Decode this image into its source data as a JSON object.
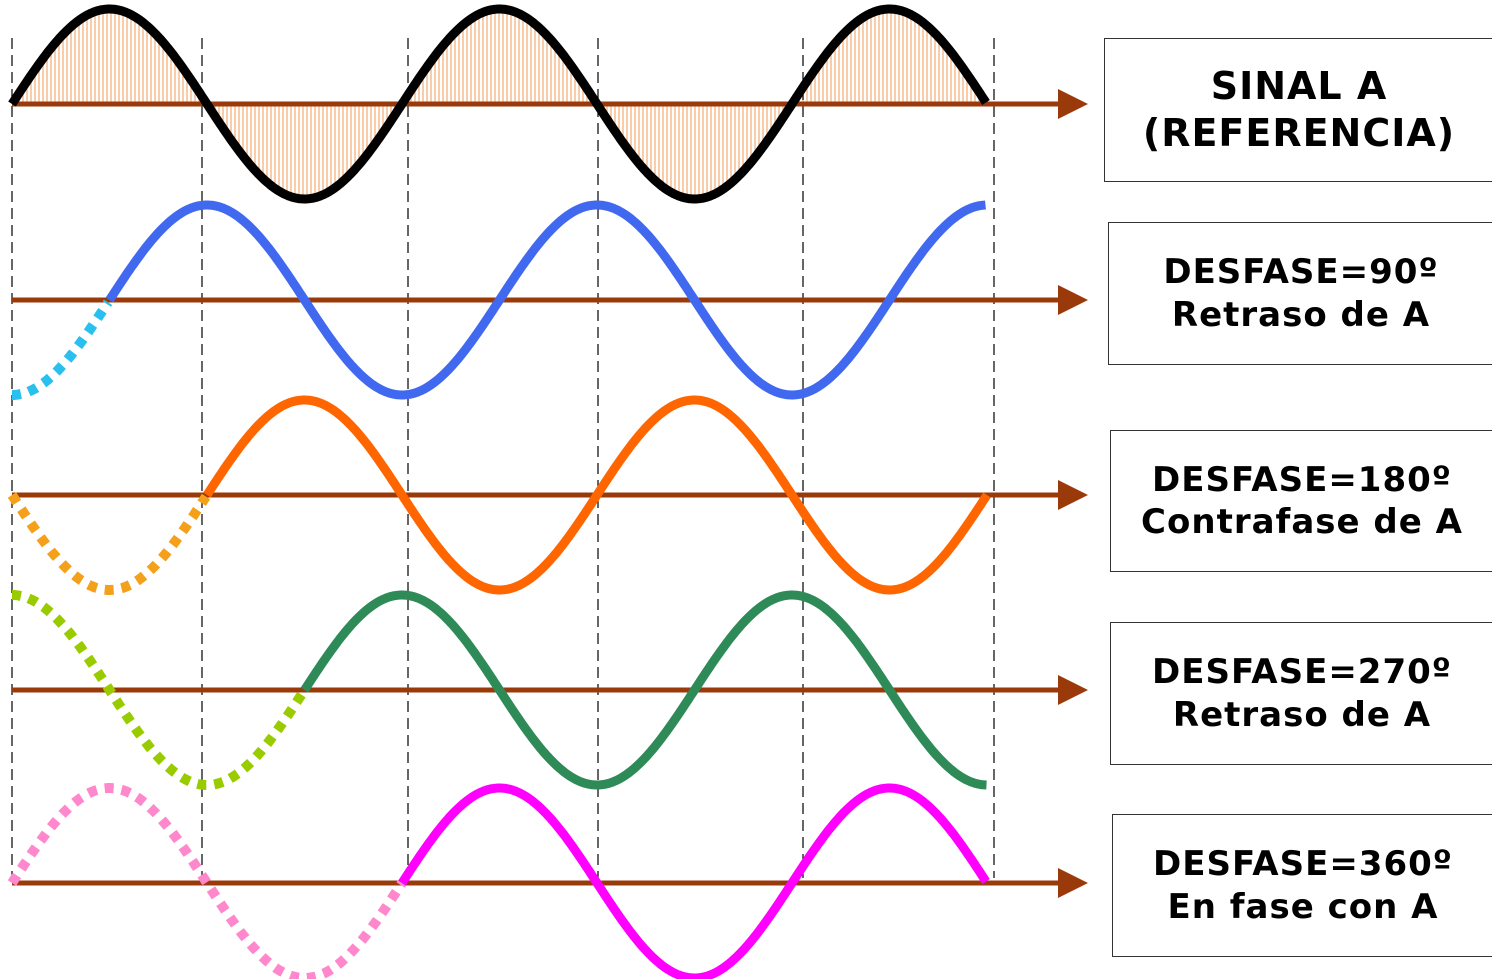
{
  "diagram": {
    "period_count": 2.5,
    "colors": {
      "axis": "#9a3a0b",
      "hatch": "#f6b27c",
      "divider": "#000000"
    },
    "signals": [
      {
        "id": "ref",
        "solid": "#000000",
        "dotted": null,
        "phase_deg": 0,
        "hatched": true
      },
      {
        "id": "d90",
        "solid": "#4169f0",
        "dotted": "#29c0f0",
        "phase_deg": 90
      },
      {
        "id": "d180",
        "solid": "#ff6600",
        "dotted": "#f5a01a",
        "phase_deg": 180
      },
      {
        "id": "d270",
        "solid": "#2e8b57",
        "dotted": "#99cc00",
        "phase_deg": 270
      },
      {
        "id": "d360",
        "solid": "#ff00ff",
        "dotted": "#ff88cc",
        "phase_deg": 360
      }
    ]
  },
  "labels": {
    "ref": {
      "line1": "SINAL A",
      "line2": "(REFERENCIA)"
    },
    "d90": {
      "line1": "DESFASE=90º",
      "line2": "Retraso de A"
    },
    "d180": {
      "line1": "DESFASE=180º",
      "line2": "Contrafase de A"
    },
    "d270": {
      "line1": "DESFASE=270º",
      "line2": "Retraso de A"
    },
    "d360": {
      "line1": "DESFASE=360º",
      "line2": "En fase con A"
    }
  }
}
